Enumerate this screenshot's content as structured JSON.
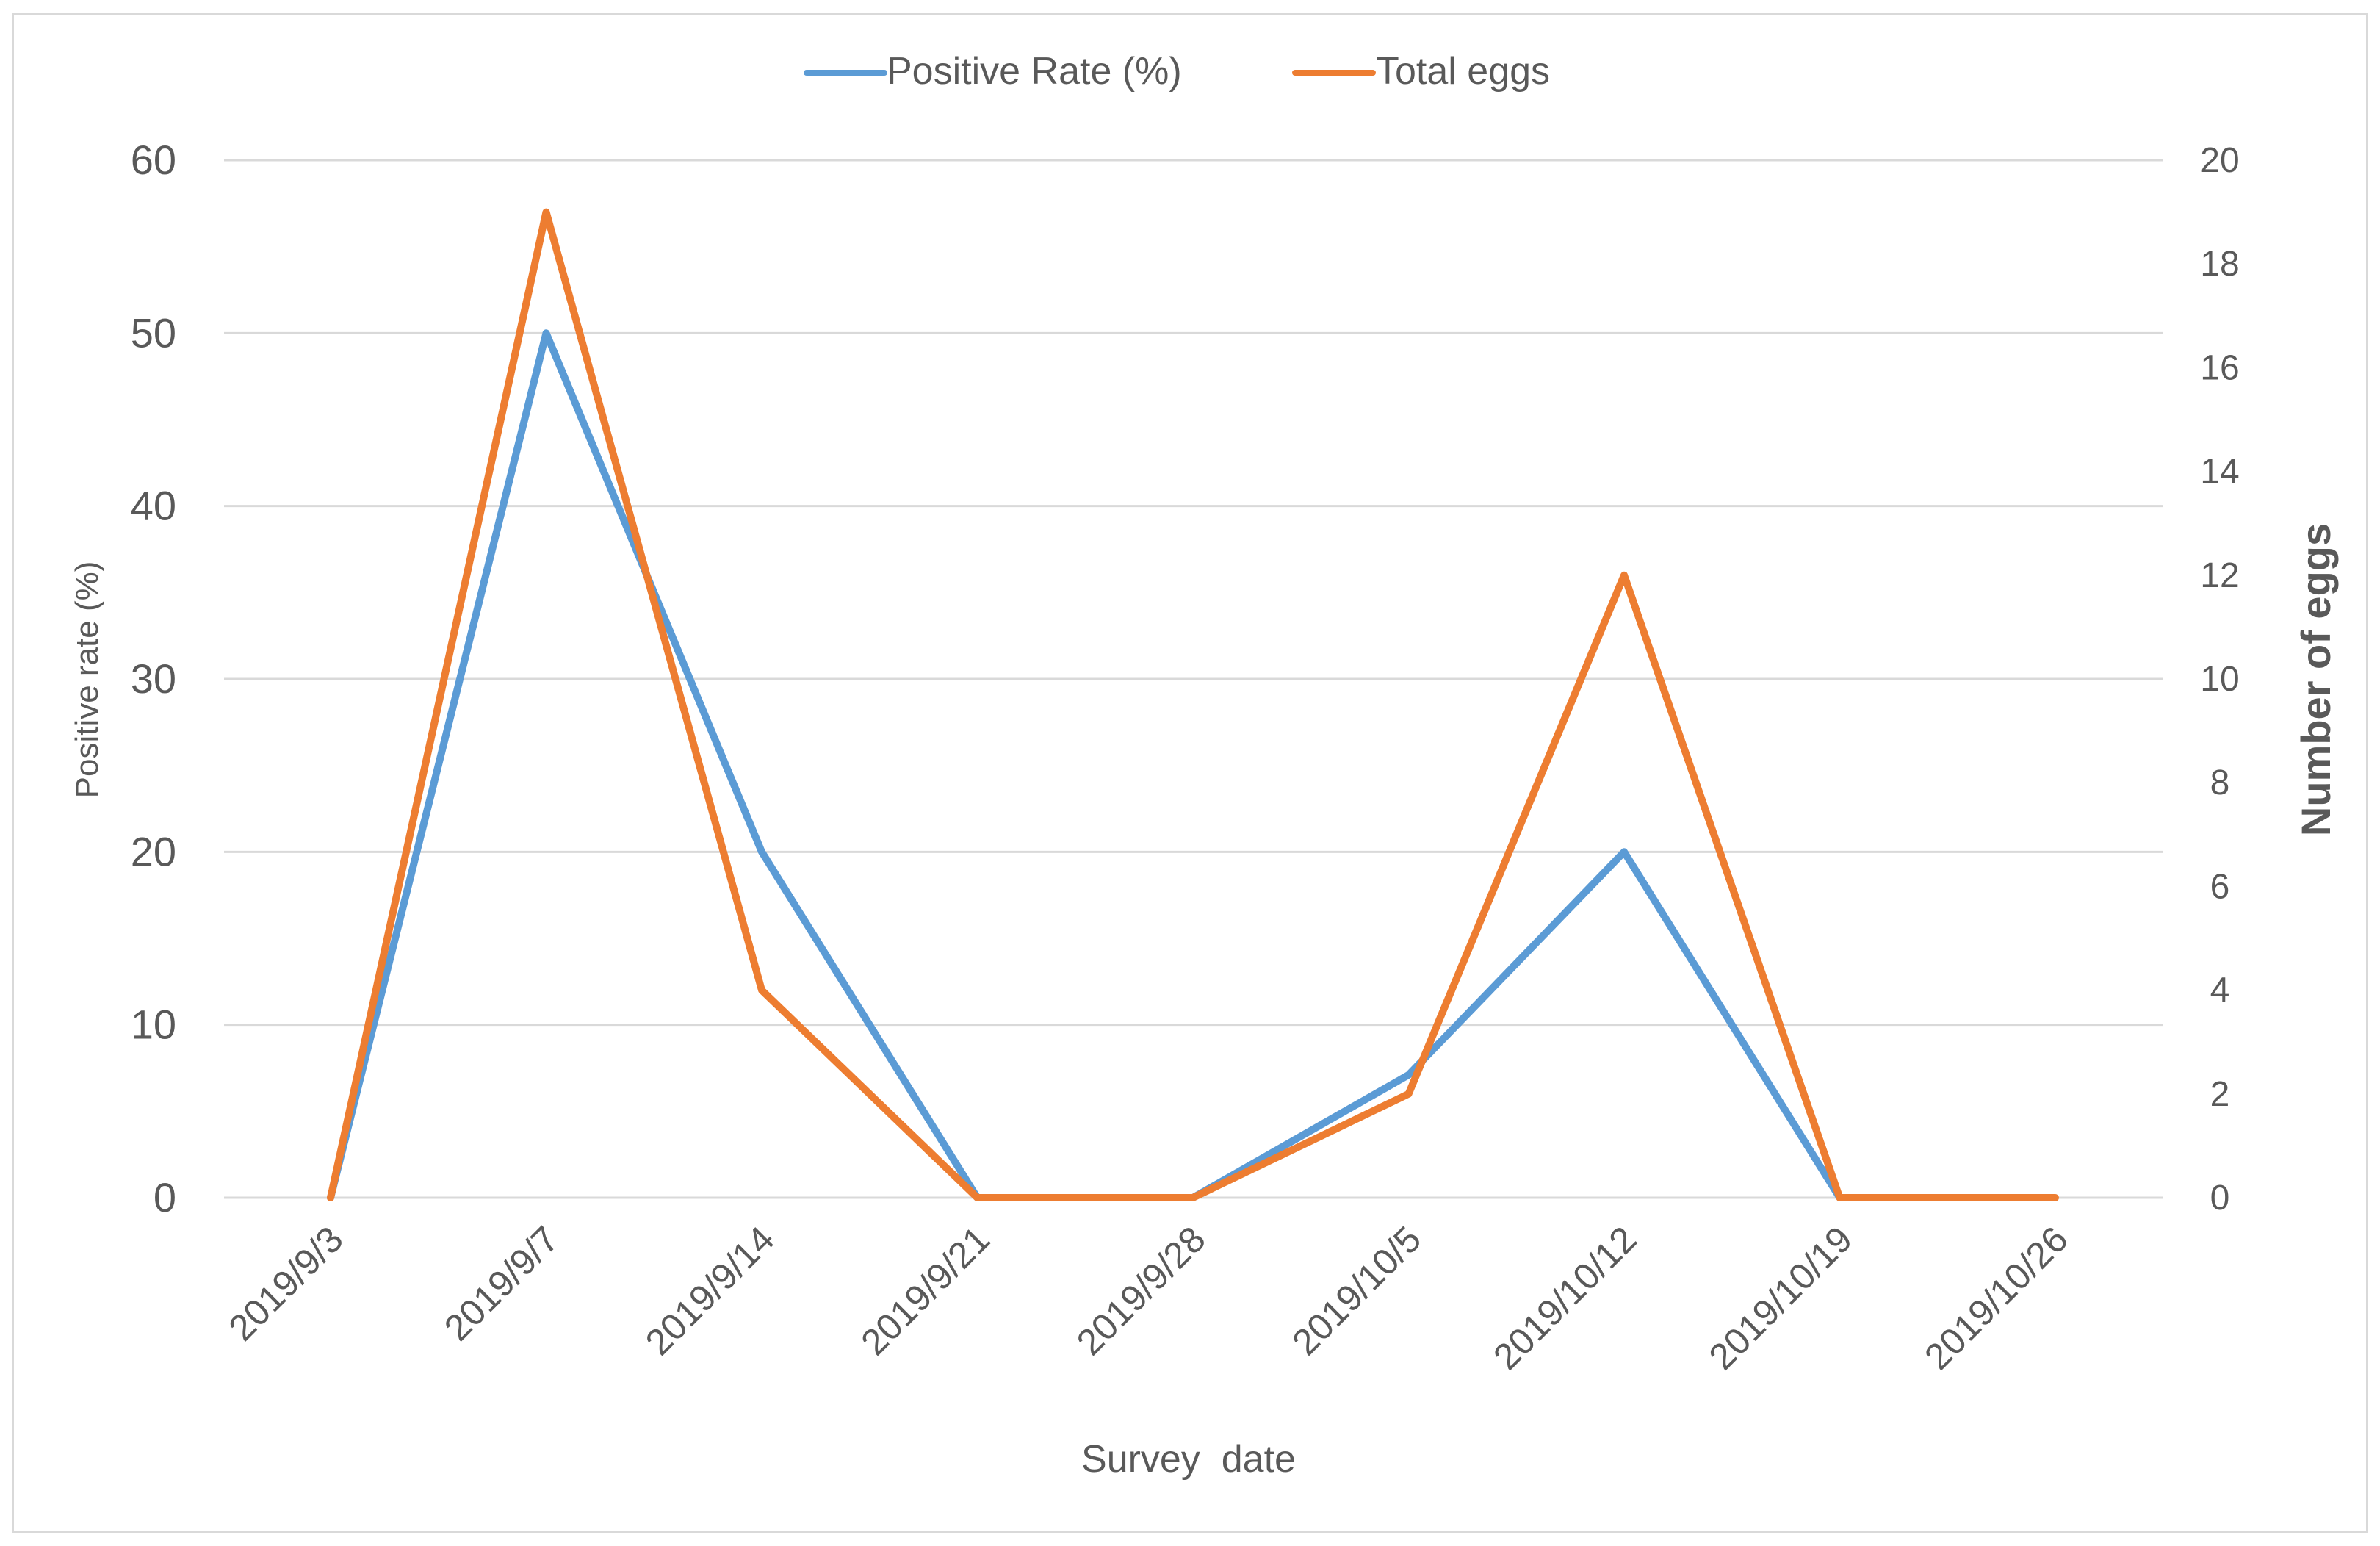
{
  "chart_data": {
    "type": "line",
    "title": "",
    "xlabel": "Survey  date",
    "ylabel": "Positive rate (%)",
    "y2label": "Number of eggs",
    "categories": [
      "2019/9/3",
      "2019/9/7",
      "2019/9/14",
      "2019/9/21",
      "2019/9/28",
      "2019/10/5",
      "2019/10/12",
      "2019/10/19",
      "2019/10/26"
    ],
    "series": [
      {
        "name": "Positive Rate (%)",
        "axis": "left",
        "color": "#5b9bd5",
        "values": [
          0,
          50,
          20,
          0,
          0,
          7.1,
          20,
          0,
          null
        ]
      },
      {
        "name": "Total eggs",
        "axis": "right",
        "color": "#ed7d31",
        "values": [
          0,
          19,
          4,
          0,
          0,
          2,
          12,
          0,
          0
        ]
      }
    ],
    "ylim": [
      0,
      60
    ],
    "y_ticks": [
      "0",
      "10",
      "20",
      "30",
      "40",
      "50",
      "60"
    ],
    "y2lim": [
      0,
      20
    ],
    "y2_ticks": [
      "0",
      "2",
      "4",
      "6",
      "8",
      "10",
      "12",
      "14",
      "16",
      "18",
      "20"
    ],
    "grid": true,
    "legend_position": "top-center",
    "gridline_color": "#d9d9d9"
  }
}
